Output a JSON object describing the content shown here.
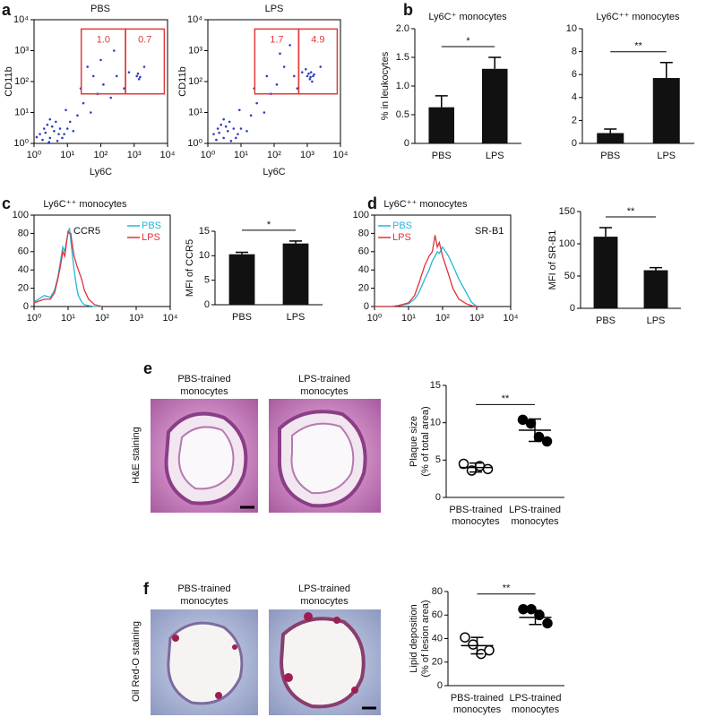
{
  "micrographs": {
    "e": {
      "stain": "H&E staining",
      "groups": [
        [
          "PBS-trained",
          "monocytes"
        ],
        [
          "LPS-trained",
          "monocytes"
        ]
      ]
    },
    "f": {
      "stain": "Oil Red-O staining",
      "groups": [
        [
          "PBS-trained",
          "monocytes"
        ],
        [
          "LPS-trained",
          "monocytes"
        ]
      ]
    }
  },
  "chart_data": [
    {
      "type": "scatter",
      "panel": "a",
      "title": "PBS",
      "xlabel": "Ly6C",
      "ylabel": "CD11b",
      "xscale": "log",
      "yscale": "log",
      "color": "#2f3fc4",
      "xlim": [
        1,
        10000
      ],
      "ylim": [
        1,
        10000
      ],
      "xticks": [
        {
          "value": 1,
          "label": "10⁰"
        },
        {
          "value": 10,
          "label": "10¹"
        },
        {
          "value": 100,
          "label": "10²"
        },
        {
          "value": 1000,
          "label": "10³"
        },
        {
          "value": 10000,
          "label": "10⁴"
        }
      ],
      "yticks": [
        {
          "value": 1,
          "label": "10⁰"
        },
        {
          "value": 10,
          "label": "10¹"
        },
        {
          "value": 100,
          "label": "10²"
        },
        {
          "value": 1000,
          "label": "10³"
        },
        {
          "value": 10000,
          "label": "10⁴"
        }
      ],
      "x": [
        1.5,
        2,
        3,
        4,
        5,
        2.5,
        6,
        8,
        3,
        1.8,
        2.2,
        4.5,
        7,
        10,
        3.5,
        1.2,
        5.5,
        2.8,
        12,
        15,
        20,
        9,
        30,
        50,
        80,
        25,
        60,
        120,
        200,
        40,
        300,
        500,
        700,
        100,
        1200,
        1400,
        1300,
        1500,
        250,
        2000
      ],
      "y": [
        2,
        3,
        1.5,
        2.5,
        1.2,
        4,
        3,
        2,
        6,
        1.3,
        2.2,
        5,
        1.5,
        3,
        3.5,
        1.6,
        2,
        1.1,
        5,
        2.5,
        8,
        12,
        20,
        10,
        40,
        60,
        150,
        80,
        30,
        300,
        150,
        60,
        200,
        500,
        150,
        120,
        180,
        140,
        1000,
        300
      ],
      "gate_color": "#e03a3a",
      "gates": [
        {
          "x": [
            26,
            550
          ],
          "y": [
            40,
            5000
          ],
          "value": 1.0,
          "label": "1.0"
        },
        {
          "x": [
            550,
            8000
          ],
          "y": [
            40,
            5000
          ],
          "value": 0.7
        }
      ]
    },
    {
      "type": "scatter",
      "title": "LPS",
      "xlabel": "Ly6C",
      "ylabel": "CD11b",
      "xscale": "log",
      "yscale": "log",
      "color": "#2f3fc4",
      "xlim": [
        1,
        10000
      ],
      "ylim": [
        1,
        10000
      ],
      "xticks": [
        {
          "value": 1,
          "label": "10⁰"
        },
        {
          "value": 10,
          "label": "10¹"
        },
        {
          "value": 100,
          "label": "10²"
        },
        {
          "value": 1000,
          "label": "10³"
        },
        {
          "value": 10000,
          "label": "10⁴"
        }
      ],
      "yticks": [
        {
          "value": 1,
          "label": "10⁰"
        },
        {
          "value": 10,
          "label": "10¹"
        },
        {
          "value": 100,
          "label": "10²"
        },
        {
          "value": 1000,
          "label": "10³"
        },
        {
          "value": 10000,
          "label": "10⁴"
        }
      ],
      "x": [
        1.5,
        2,
        3,
        4,
        5,
        2.5,
        6,
        8,
        3,
        1.8,
        2.2,
        4.5,
        7,
        10,
        3.5,
        15,
        20,
        9,
        30,
        50,
        80,
        25,
        60,
        120,
        200,
        400,
        500,
        700,
        150,
        300,
        1000,
        1200,
        1300,
        1500,
        1100,
        1400,
        1600,
        1250,
        900,
        2500
      ],
      "y": [
        2,
        3,
        1.5,
        2.5,
        1.2,
        4,
        3,
        2,
        6,
        1.3,
        2.2,
        5,
        1.5,
        3,
        3.5,
        2.5,
        8,
        12,
        20,
        10,
        40,
        60,
        150,
        80,
        300,
        150,
        60,
        200,
        800,
        1500,
        150,
        120,
        200,
        150,
        180,
        100,
        170,
        140,
        250,
        300
      ],
      "gate_color": "#e03a3a",
      "gates": [
        {
          "x": [
            26,
            550
          ],
          "y": [
            40,
            5000
          ],
          "value": 1.7
        },
        {
          "x": [
            550,
            8000
          ],
          "y": [
            40,
            5000
          ],
          "value": 4.9
        }
      ]
    },
    {
      "type": "bar",
      "panel": "b",
      "title": "Ly6C⁺ monocytes",
      "ylabel": "% in leukocytes",
      "color": "#111111",
      "categories": [
        "PBS",
        "LPS"
      ],
      "values": [
        0.63,
        1.3
      ],
      "errors": [
        0.2,
        0.2
      ],
      "ylim": [
        0,
        2
      ],
      "yticks": [
        0,
        0.5,
        {
          "value": 1,
          "label": "1.0"
        },
        1.5,
        {
          "value": 2,
          "label": "2.0"
        }
      ],
      "significance": "*"
    },
    {
      "type": "bar",
      "title": "Ly6C⁺⁺ monocytes",
      "color": "#111111",
      "categories": [
        "PBS",
        "LPS"
      ],
      "values": [
        0.9,
        5.7
      ],
      "errors": [
        0.35,
        1.35
      ],
      "ylim": [
        0,
        10
      ],
      "yticks": [
        0,
        2,
        4,
        6,
        8,
        10
      ],
      "significance": "**"
    },
    {
      "type": "line",
      "panel": "c",
      "title": "Ly6C⁺⁺ monocytes",
      "annotation": "CCR5",
      "xscale": "log",
      "legend": "upper right",
      "xlim": [
        1,
        10000
      ],
      "ylim": [
        0,
        100
      ],
      "xticks": [
        {
          "value": 1,
          "label": "10⁰"
        },
        {
          "value": 10,
          "label": "10¹"
        },
        {
          "value": 100,
          "label": "10²"
        },
        {
          "value": 1000,
          "label": "10³"
        },
        {
          "value": 10000,
          "label": "10⁴"
        }
      ],
      "yticks": [
        0,
        20,
        40,
        60,
        80,
        100
      ],
      "x": [
        1,
        2,
        3,
        4,
        5,
        6,
        7,
        8,
        9,
        10,
        11,
        12,
        13,
        15,
        18,
        20,
        25,
        30,
        40,
        60,
        100
      ],
      "series": [
        {
          "name": "PBS",
          "color": "#25b6d8",
          "values": [
            5,
            12,
            10,
            18,
            32,
            50,
            65,
            60,
            72,
            80,
            86,
            72,
            60,
            40,
            20,
            12,
            5,
            2,
            1,
            0,
            0
          ]
        },
        {
          "name": "LPS",
          "color": "#e0303a",
          "values": [
            4,
            8,
            8,
            15,
            30,
            45,
            60,
            55,
            70,
            82,
            80,
            80,
            70,
            55,
            45,
            40,
            30,
            18,
            8,
            2,
            0
          ]
        }
      ]
    },
    {
      "type": "bar",
      "ylabel": "MFI of CCR5",
      "color": "#111111",
      "categories": [
        "PBS",
        "LPS"
      ],
      "values": [
        10.3,
        12.5
      ],
      "errors": [
        0.4,
        0.5
      ],
      "ylim": [
        0,
        15
      ],
      "yticks": [
        0,
        5,
        10,
        15
      ],
      "significance": "*"
    },
    {
      "type": "line",
      "panel": "d",
      "title": "Ly6C⁺⁺ monocytes",
      "annotation": "SR-B1",
      "xscale": "log",
      "legend": "upper left",
      "xlim": [
        1,
        10000
      ],
      "ylim": [
        0,
        100
      ],
      "xticks": [
        {
          "value": 1,
          "label": "10⁰"
        },
        {
          "value": 10,
          "label": "10¹"
        },
        {
          "value": 100,
          "label": "10²"
        },
        {
          "value": 1000,
          "label": "10³"
        },
        {
          "value": 10000,
          "label": "10⁴"
        }
      ],
      "yticks": [
        0,
        20,
        40,
        60,
        80,
        100
      ],
      "x": [
        1,
        3,
        5,
        10,
        15,
        20,
        30,
        40,
        50,
        60,
        70,
        80,
        100,
        150,
        200,
        300,
        500,
        700,
        1000
      ],
      "series": [
        {
          "name": "PBS",
          "color": "#25b6d8",
          "values": [
            0,
            0,
            1,
            3,
            8,
            15,
            30,
            40,
            50,
            55,
            60,
            58,
            65,
            55,
            45,
            30,
            15,
            5,
            0
          ]
        },
        {
          "name": "LPS",
          "color": "#e0303a",
          "values": [
            0,
            0,
            1,
            4,
            12,
            25,
            45,
            55,
            60,
            78,
            65,
            70,
            55,
            35,
            20,
            8,
            3,
            1,
            0
          ]
        }
      ]
    },
    {
      "type": "bar",
      "ylabel": "MFI of SR-B1",
      "color": "#111111",
      "categories": [
        "PBS",
        "LPS"
      ],
      "values": [
        111,
        59
      ],
      "errors": [
        14,
        4
      ],
      "ylim": [
        0,
        150
      ],
      "yticks": [
        0,
        50,
        100,
        150
      ],
      "significance": "**"
    },
    {
      "type": "strip",
      "panel": "e",
      "ylabel": [
        "Plaque size",
        "(% of total area)"
      ],
      "categories": [
        [
          "PBS-trained",
          "monocytes"
        ],
        [
          "LPS-trained",
          "monocytes"
        ]
      ],
      "values": [
        [
          4.5,
          3.6,
          4.2,
          3.8
        ],
        [
          10.4,
          9.9,
          8.1,
          7.5
        ]
      ],
      "means": [
        4.0,
        9.0
      ],
      "sd": [
        0.6,
        1.5
      ],
      "markers": [
        "open",
        "filled"
      ],
      "ylim": [
        0,
        15
      ],
      "yticks": [
        0,
        5,
        10,
        15
      ],
      "significance": "**"
    },
    {
      "type": "strip",
      "panel": "f",
      "ylabel": [
        "Lipid deposition",
        "(% of lesion area)"
      ],
      "categories": [
        [
          "PBS-trained",
          "monocytes"
        ],
        [
          "LPS-trained",
          "monocytes"
        ]
      ],
      "values": [
        [
          41,
          35,
          27,
          30
        ],
        [
          65,
          65,
          60,
          53
        ]
      ],
      "means": [
        34,
        58
      ],
      "sd": [
        7,
        6
      ],
      "markers": [
        "open",
        "filled"
      ],
      "ylim": [
        0,
        80
      ],
      "yticks": [
        0,
        20,
        40,
        60,
        80
      ],
      "significance": "**"
    }
  ]
}
